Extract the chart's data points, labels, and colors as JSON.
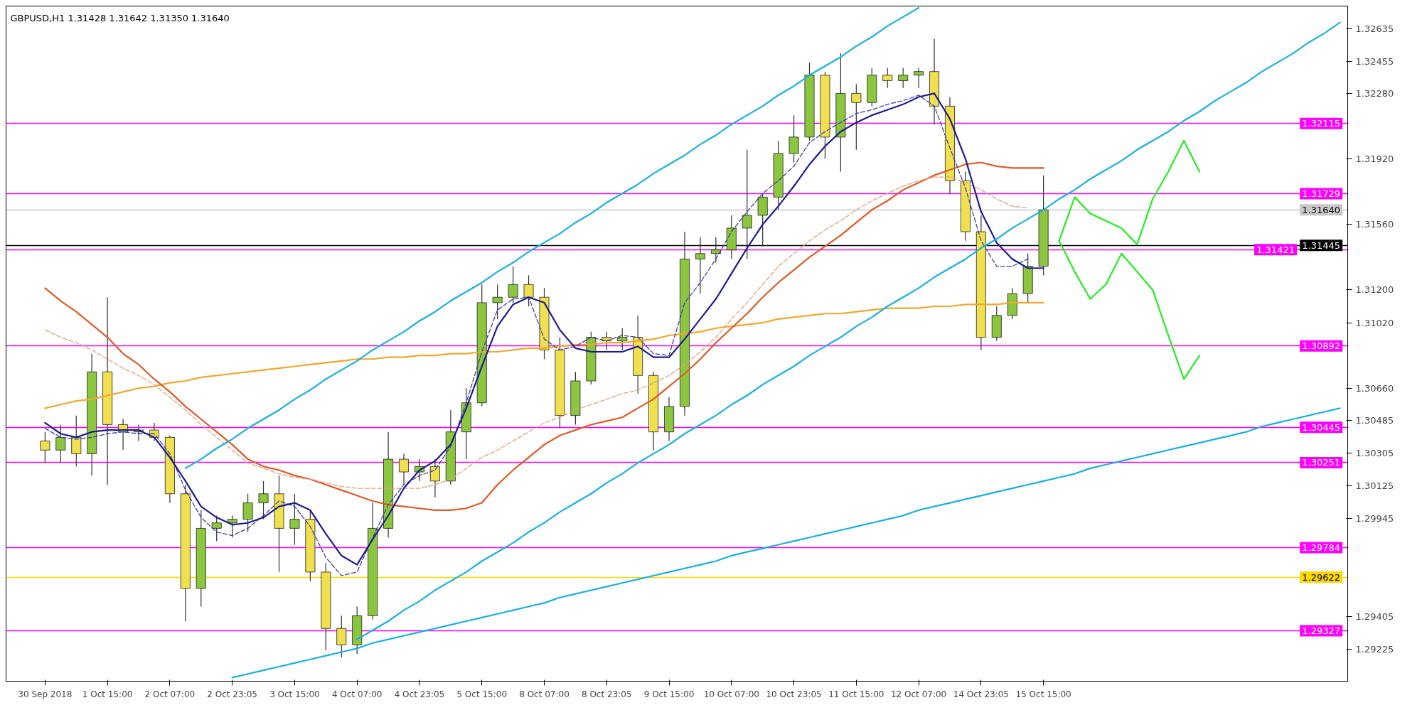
{
  "chart_data": {
    "type": "candlestick",
    "title": "GBPUSD,H1  1.31428 1.31642 1.31350 1.31640",
    "categories": [
      "30 Sep 2018",
      null,
      null,
      null,
      "1 Oct 15:00",
      null,
      null,
      null,
      "2 Oct 07:00",
      null,
      null,
      null,
      "2 Oct 23:05",
      null,
      null,
      null,
      "3 Oct 15:00",
      null,
      null,
      null,
      "4 Oct 07:00",
      null,
      null,
      null,
      "4 Oct 23:05",
      null,
      null,
      null,
      "5 Oct 15:00",
      null,
      null,
      null,
      "8 Oct 07:00",
      null,
      null,
      null,
      "8 Oct 23:05",
      null,
      null,
      null,
      "9 Oct 15:00",
      null,
      null,
      null,
      "10 Oct 07:00",
      null,
      null,
      null,
      "10 Oct 23:05",
      null,
      null,
      null,
      "11 Oct 15:00",
      null,
      null,
      null,
      "12 Oct 07:00",
      null,
      null,
      null,
      "14 Oct 23:05",
      null,
      null,
      null,
      "15 Oct 15:00",
      null,
      null,
      null,
      null,
      null,
      null,
      null,
      null,
      null,
      null,
      null,
      null,
      null,
      null,
      null,
      null,
      null,
      null,
      null
    ],
    "ohlc": [
      [
        1.3037,
        1.3042,
        1.3025,
        1.3032
      ],
      [
        1.3032,
        1.3046,
        1.3025,
        1.3039
      ],
      [
        1.3039,
        1.3051,
        1.3023,
        1.303
      ],
      [
        1.303,
        1.3085,
        1.3018,
        1.3075
      ],
      [
        1.3075,
        1.3116,
        1.3013,
        1.3046
      ],
      [
        1.3046,
        1.3049,
        1.3032,
        1.3042
      ],
      [
        1.3042,
        1.3046,
        1.3037,
        1.3043
      ],
      [
        1.3043,
        1.3047,
        1.3037,
        1.3039
      ],
      [
        1.3039,
        1.304,
        1.3003,
        1.3008
      ],
      [
        1.3008,
        1.3013,
        1.2938,
        1.2956
      ],
      [
        1.2956,
        1.2999,
        1.2946,
        1.2989
      ],
      [
        1.2989,
        1.2996,
        1.2982,
        1.2992
      ],
      [
        1.2992,
        1.2996,
        1.2984,
        1.2994
      ],
      [
        1.2994,
        1.3008,
        1.2987,
        1.3003
      ],
      [
        1.3003,
        1.3015,
        1.2994,
        1.3008
      ],
      [
        1.3008,
        1.3018,
        1.2965,
        1.2989
      ],
      [
        1.2989,
        1.3008,
        1.298,
        1.2994
      ],
      [
        1.2994,
        1.2999,
        1.296,
        1.2965
      ],
      [
        1.2965,
        1.297,
        1.2922,
        1.2934
      ],
      [
        1.2934,
        1.2941,
        1.2918,
        1.2925
      ],
      [
        1.2925,
        1.2946,
        1.292,
        1.2941
      ],
      [
        1.2941,
        1.3003,
        1.2939,
        1.2989
      ],
      [
        1.2989,
        1.3042,
        1.2984,
        1.3027
      ],
      [
        1.3027,
        1.303,
        1.3013,
        1.302
      ],
      [
        1.302,
        1.3027,
        1.3015,
        1.3023
      ],
      [
        1.3023,
        1.3027,
        1.3006,
        1.3015
      ],
      [
        1.3015,
        1.3054,
        1.3013,
        1.3042
      ],
      [
        1.3042,
        1.3066,
        1.3027,
        1.3058
      ],
      [
        1.3058,
        1.3123,
        1.3056,
        1.3113
      ],
      [
        1.3113,
        1.3123,
        1.3104,
        1.3116
      ],
      [
        1.3116,
        1.3133,
        1.3113,
        1.3123
      ],
      [
        1.3123,
        1.3128,
        1.3111,
        1.3116
      ],
      [
        1.3116,
        1.3121,
        1.3082,
        1.3087
      ],
      [
        1.3087,
        1.3094,
        1.3044,
        1.3051
      ],
      [
        1.3051,
        1.3075,
        1.3046,
        1.307
      ],
      [
        1.307,
        1.3097,
        1.3068,
        1.3094
      ],
      [
        1.3094,
        1.3097,
        1.3087,
        1.3092
      ],
      [
        1.3092,
        1.3099,
        1.3087,
        1.3094
      ],
      [
        1.3094,
        1.3106,
        1.3063,
        1.3073
      ],
      [
        1.3073,
        1.3075,
        1.3032,
        1.3042
      ],
      [
        1.3042,
        1.3061,
        1.3037,
        1.3056
      ],
      [
        1.3056,
        1.3152,
        1.3051,
        1.3137
      ],
      [
        1.3137,
        1.3149,
        1.3118,
        1.314
      ],
      [
        1.314,
        1.3149,
        1.3135,
        1.3142
      ],
      [
        1.3142,
        1.3161,
        1.3137,
        1.3154
      ],
      [
        1.3154,
        1.3197,
        1.3137,
        1.3161
      ],
      [
        1.3161,
        1.3173,
        1.3144,
        1.3171
      ],
      [
        1.3171,
        1.3202,
        1.3164,
        1.3195
      ],
      [
        1.3195,
        1.3216,
        1.319,
        1.3204
      ],
      [
        1.3204,
        1.3245,
        1.3202,
        1.3238
      ],
      [
        1.3238,
        1.324,
        1.3192,
        1.3204
      ],
      [
        1.3204,
        1.325,
        1.3185,
        1.3228
      ],
      [
        1.3228,
        1.3233,
        1.3197,
        1.3223
      ],
      [
        1.3223,
        1.3242,
        1.3221,
        1.3238
      ],
      [
        1.3238,
        1.3242,
        1.3231,
        1.3235
      ],
      [
        1.3235,
        1.3242,
        1.3231,
        1.3238
      ],
      [
        1.3238,
        1.3242,
        1.3231,
        1.324
      ],
      [
        1.324,
        1.3258,
        1.3211,
        1.3221
      ],
      [
        1.3221,
        1.3226,
        1.3173,
        1.318
      ],
      [
        1.318,
        1.3185,
        1.3147,
        1.3152
      ],
      [
        1.3152,
        1.3161,
        1.3087,
        1.3094
      ],
      [
        1.3094,
        1.3111,
        1.3092,
        1.3106
      ],
      [
        1.3106,
        1.3121,
        1.3104,
        1.3118
      ],
      [
        1.3118,
        1.314,
        1.3113,
        1.3133
      ],
      [
        1.3133,
        1.3183,
        1.3128,
        1.3164
      ],
      null,
      null,
      null,
      null,
      null,
      null,
      null,
      null,
      null,
      null,
      null,
      null,
      null,
      null,
      null,
      null,
      null,
      null,
      null
    ],
    "colors": [
      "#f0e050",
      "#8cc63f",
      "#f0e050",
      "#8cc63f",
      "#f0e050",
      "#f0e050",
      "#8cc63f",
      "#f0e050",
      "#f0e050",
      "#f0e050",
      "#8cc63f",
      "#8cc63f",
      "#8cc63f",
      "#8cc63f",
      "#8cc63f",
      "#f0e050",
      "#8cc63f",
      "#f0e050",
      "#f0e050",
      "#f0e050",
      "#8cc63f",
      "#8cc63f",
      "#8cc63f",
      "#f0e050",
      "#8cc63f",
      "#f0e050",
      "#8cc63f",
      "#8cc63f",
      "#8cc63f",
      "#8cc63f",
      "#8cc63f",
      "#f0e050",
      "#f0e050",
      "#f0e050",
      "#8cc63f",
      "#8cc63f",
      "#f0e050",
      "#8cc63f",
      "#f0e050",
      "#f0e050",
      "#8cc63f",
      "#8cc63f",
      "#8cc63f",
      "#8cc63f",
      "#8cc63f",
      "#8cc63f",
      "#8cc63f",
      "#8cc63f",
      "#8cc63f",
      "#8cc63f",
      "#f0e050",
      "#8cc63f",
      "#f0e050",
      "#8cc63f",
      "#f0e050",
      "#8cc63f",
      "#8cc63f",
      "#f0e050",
      "#f0e050",
      "#f0e050",
      "#f0e050",
      "#8cc63f",
      "#8cc63f",
      "#8cc63f",
      "#8cc63f",
      null,
      null,
      null,
      null,
      null,
      null,
      null,
      null,
      null,
      null,
      null,
      null,
      null,
      null,
      null,
      null,
      null,
      null,
      null
    ],
    "series": [
      {
        "type": "line",
        "color": "#f0a830",
        "line_style": "solid",
        "values": [
          1.3055,
          1.3057,
          1.3059,
          1.306,
          1.3062,
          1.3064,
          1.3066,
          1.3067,
          1.3069,
          1.307,
          1.3072,
          1.3073,
          1.3074,
          1.3075,
          1.3076,
          1.3077,
          1.3078,
          1.3079,
          1.308,
          1.3081,
          1.3082,
          1.3082,
          1.3083,
          1.3083,
          1.3084,
          1.3084,
          1.3085,
          1.3085,
          1.3086,
          1.3086,
          1.3087,
          1.3088,
          1.3088,
          1.3089,
          1.309,
          1.309,
          1.3091,
          1.3091,
          1.3092,
          1.3093,
          1.3095,
          1.3096,
          1.3097,
          1.3099,
          1.31,
          1.3101,
          1.3102,
          1.3104,
          1.3105,
          1.3106,
          1.3107,
          1.3107,
          1.3108,
          1.3109,
          1.311,
          1.311,
          1.311,
          1.3111,
          1.3111,
          1.3112,
          1.3112,
          1.3112,
          1.3113,
          1.3113,
          1.3113,
          null,
          null,
          null,
          null,
          null,
          null,
          null,
          null,
          null,
          null,
          null,
          null,
          null,
          null,
          null,
          null,
          null,
          null,
          null
        ]
      },
      {
        "type": "line",
        "color": "#e05a28",
        "line_style": "solid",
        "values": [
          1.3121,
          1.3114,
          1.3108,
          1.3101,
          1.3094,
          1.3085,
          1.3079,
          1.3071,
          1.3064,
          1.3056,
          1.3049,
          1.3042,
          1.3035,
          1.3027,
          1.3023,
          1.3021,
          1.3018,
          1.3016,
          1.3013,
          1.301,
          1.3007,
          1.3004,
          1.3002,
          1.3001,
          1.3,
          1.2999,
          1.2999,
          1.3,
          1.3003,
          1.3013,
          1.3021,
          1.3028,
          1.3035,
          1.304,
          1.3043,
          1.3046,
          1.3048,
          1.305,
          1.3055,
          1.306,
          1.3067,
          1.3074,
          1.3082,
          1.3091,
          1.3099,
          1.3107,
          1.3116,
          1.3124,
          1.3131,
          1.3138,
          1.3144,
          1.315,
          1.3157,
          1.3164,
          1.3169,
          1.3175,
          1.3179,
          1.3183,
          1.3186,
          1.3189,
          1.319,
          1.3188,
          1.3187,
          1.3187,
          1.3187,
          null,
          null,
          null,
          null,
          null,
          null,
          null,
          null,
          null,
          null,
          null,
          null,
          null,
          null,
          null,
          null,
          null,
          null,
          null
        ]
      },
      {
        "type": "line",
        "color": "#e0a080",
        "line_style": "dashed",
        "values": [
          1.3098,
          1.3094,
          1.3091,
          1.3087,
          1.3082,
          1.3077,
          1.3073,
          1.3068,
          1.3061,
          1.3054,
          1.3046,
          1.3039,
          1.3032,
          1.3025,
          1.3022,
          1.3019,
          1.3017,
          1.3016,
          1.3014,
          1.3012,
          1.3011,
          1.3011,
          1.3011,
          1.3011,
          1.3011,
          1.3013,
          1.3016,
          1.3022,
          1.3028,
          1.3032,
          1.3037,
          1.3042,
          1.3047,
          1.305,
          1.3054,
          1.3057,
          1.306,
          1.3063,
          1.3065,
          1.3069,
          1.3073,
          1.3079,
          1.3086,
          1.3094,
          1.3104,
          1.3113,
          1.3123,
          1.3133,
          1.314,
          1.3147,
          1.3153,
          1.3158,
          1.3164,
          1.3169,
          1.3173,
          1.3177,
          1.318,
          1.3182,
          1.3182,
          1.3179,
          1.3175,
          1.317,
          1.3166,
          1.3165,
          null,
          null,
          null,
          null,
          null,
          null,
          null,
          null,
          null,
          null,
          null,
          null,
          null,
          null,
          null,
          null,
          null,
          null,
          null,
          null
        ]
      },
      {
        "type": "line",
        "color": "#4040a0",
        "line_style": "dashed",
        "values": [
          1.3044,
          1.3039,
          1.3038,
          1.3039,
          1.3041,
          1.3042,
          1.3041,
          1.3041,
          1.303,
          1.301,
          1.2995,
          1.2987,
          1.2985,
          1.2989,
          1.2996,
          1.3004,
          1.3001,
          1.299,
          1.2973,
          1.2963,
          1.2965,
          1.2984,
          1.3002,
          1.3013,
          1.3018,
          1.3021,
          1.3034,
          1.3058,
          1.3086,
          1.3109,
          1.3115,
          1.3116,
          1.3093,
          1.3087,
          1.3089,
          1.3094,
          1.3092,
          1.3095,
          1.3094,
          1.3085,
          1.3084,
          1.3113,
          1.3124,
          1.3137,
          1.3152,
          1.3163,
          1.3173,
          1.318,
          1.3188,
          1.3201,
          1.3207,
          1.3212,
          1.3217,
          1.3219,
          1.3222,
          1.3224,
          1.3227,
          1.3221,
          1.3198,
          1.3176,
          1.3147,
          1.3133,
          1.3133,
          1.3137,
          null,
          null,
          null,
          null,
          null,
          null,
          null,
          null,
          null,
          null,
          null,
          null,
          null,
          null,
          null,
          null,
          null,
          null,
          null,
          null
        ]
      },
      {
        "type": "line",
        "color": "#1c1c8c",
        "line_style": "solid",
        "values": [
          1.3047,
          1.3041,
          1.3039,
          1.3042,
          1.3043,
          1.3043,
          1.3043,
          1.3039,
          1.3028,
          1.3015,
          1.3001,
          1.2995,
          1.2991,
          1.2992,
          1.2995,
          1.3001,
          1.3003,
          1.2999,
          1.2986,
          1.2974,
          1.2969,
          1.2983,
          1.2996,
          1.3011,
          1.3021,
          1.3026,
          1.3035,
          1.3055,
          1.3078,
          1.31,
          1.3112,
          1.3116,
          1.3113,
          1.3098,
          1.3088,
          1.3086,
          1.3086,
          1.3086,
          1.3089,
          1.3083,
          1.3083,
          1.3093,
          1.3104,
          1.3115,
          1.3129,
          1.3143,
          1.3156,
          1.3166,
          1.3177,
          1.3189,
          1.3199,
          1.3207,
          1.3212,
          1.3216,
          1.3219,
          1.3222,
          1.3226,
          1.3228,
          1.3214,
          1.3192,
          1.3163,
          1.3146,
          1.3137,
          1.3132,
          1.3132,
          null,
          null,
          null,
          null,
          null,
          null,
          null,
          null,
          null,
          null,
          null,
          null,
          null,
          null,
          null,
          null,
          null,
          null,
          null
        ]
      },
      {
        "type": "line",
        "color": "#1ab0e0",
        "line_style": "solid",
        "values": [
          null,
          null,
          null,
          null,
          null,
          null,
          null,
          null,
          null,
          1.3022,
          1.3027,
          1.3033,
          1.3038,
          1.3044,
          1.3049,
          1.3054,
          1.306,
          1.3065,
          1.3071,
          1.3076,
          1.3081,
          1.3087,
          1.3092,
          1.3097,
          1.3103,
          1.3108,
          1.3114,
          1.3119,
          1.3124,
          1.313,
          1.3135,
          1.3141,
          1.3146,
          1.3151,
          1.3157,
          1.3162,
          1.3168,
          1.3173,
          1.3178,
          1.3184,
          1.3189,
          1.3194,
          1.32,
          1.3205,
          1.3211,
          1.3216,
          1.3221,
          1.3227,
          1.3232,
          1.3238,
          1.3243,
          1.3248,
          1.3254,
          1.3259,
          1.3265,
          1.327,
          1.3275,
          null,
          null,
          null,
          null,
          null,
          null,
          null,
          null,
          null,
          null,
          null,
          null,
          null,
          null,
          null,
          null,
          null,
          null,
          null,
          null,
          null,
          null,
          null,
          null,
          null,
          null,
          null
        ]
      },
      {
        "type": "line",
        "color": "#1ab0e0",
        "line_style": "solid",
        "values": [
          null,
          null,
          null,
          null,
          null,
          null,
          null,
          null,
          null,
          null,
          null,
          null,
          null,
          null,
          null,
          null,
          null,
          null,
          null,
          null,
          1.2928,
          1.2933,
          1.2938,
          1.2944,
          1.2949,
          1.2955,
          1.296,
          1.2965,
          1.2971,
          1.2976,
          1.2981,
          1.2987,
          1.2992,
          1.2998,
          1.3003,
          1.3008,
          1.3014,
          1.3019,
          1.3025,
          1.303,
          1.3035,
          1.3041,
          1.3046,
          1.3051,
          1.3057,
          1.3062,
          1.3068,
          1.3073,
          1.3078,
          1.3084,
          1.3089,
          1.3094,
          1.31,
          1.3105,
          1.3111,
          1.3116,
          1.3121,
          1.3127,
          1.3132,
          1.3137,
          1.3143,
          1.3148,
          1.3154,
          1.3159,
          1.3164,
          1.317,
          1.3175,
          1.3181,
          1.3186,
          1.3191,
          1.3197,
          1.3202,
          1.3207,
          1.3213,
          1.3218,
          1.3224,
          1.3229,
          1.3234,
          1.324,
          1.3245,
          1.325,
          1.3256,
          1.3261,
          1.3267
        ]
      },
      {
        "type": "line",
        "color": "#1ab0e0",
        "line_style": "solid",
        "values": [
          null,
          null,
          null,
          null,
          null,
          null,
          null,
          null,
          null,
          null,
          null,
          null,
          1.2907,
          1.2909,
          1.2911,
          1.2913,
          1.2915,
          1.2917,
          1.2919,
          1.2921,
          1.2923,
          1.2926,
          1.2928,
          1.293,
          1.2932,
          1.2934,
          1.2936,
          1.2938,
          1.294,
          1.2942,
          1.2944,
          1.2946,
          1.2948,
          1.2951,
          1.2953,
          1.2955,
          1.2957,
          1.2959,
          1.2961,
          1.2963,
          1.2965,
          1.2967,
          1.2969,
          1.2971,
          1.2974,
          1.2976,
          1.2978,
          1.298,
          1.2982,
          1.2984,
          1.2986,
          1.2988,
          1.299,
          1.2992,
          1.2994,
          1.2996,
          1.2999,
          1.3001,
          1.3003,
          1.3005,
          1.3007,
          1.3009,
          1.3011,
          1.3013,
          1.3015,
          1.3017,
          1.3019,
          1.3022,
          1.3024,
          1.3026,
          1.3028,
          1.303,
          1.3032,
          1.3034,
          1.3036,
          1.3038,
          1.304,
          1.3042,
          1.3045,
          1.3047,
          1.3049,
          1.3051,
          1.3053,
          1.3055
        ]
      },
      {
        "type": "line",
        "color": "#22ee22",
        "line_style": "solid",
        "values": [
          null,
          null,
          null,
          null,
          null,
          null,
          null,
          null,
          null,
          null,
          null,
          null,
          null,
          null,
          null,
          null,
          null,
          null,
          null,
          null,
          null,
          null,
          null,
          null,
          null,
          null,
          null,
          null,
          null,
          null,
          null,
          null,
          null,
          null,
          null,
          null,
          null,
          null,
          null,
          null,
          null,
          null,
          null,
          null,
          null,
          null,
          null,
          null,
          null,
          null,
          null,
          null,
          null,
          null,
          null,
          null,
          null,
          null,
          null,
          null,
          null,
          null,
          null,
          null,
          null,
          1.3147,
          1.3171,
          1.3162,
          1.3158,
          1.3154,
          1.3145,
          1.317,
          1.3185,
          1.3202,
          1.3185,
          null,
          null,
          null,
          null,
          null,
          null,
          null,
          null,
          null
        ]
      },
      {
        "type": "line",
        "color": "#22ee22",
        "line_style": "solid",
        "values": [
          null,
          null,
          null,
          null,
          null,
          null,
          null,
          null,
          null,
          null,
          null,
          null,
          null,
          null,
          null,
          null,
          null,
          null,
          null,
          null,
          null,
          null,
          null,
          null,
          null,
          null,
          null,
          null,
          null,
          null,
          null,
          null,
          null,
          null,
          null,
          null,
          null,
          null,
          null,
          null,
          null,
          null,
          null,
          null,
          null,
          null,
          null,
          null,
          null,
          null,
          null,
          null,
          null,
          null,
          null,
          null,
          null,
          null,
          null,
          null,
          null,
          null,
          null,
          null,
          null,
          1.3147,
          1.313,
          1.3115,
          1.3123,
          1.314,
          1.313,
          1.312,
          1.3095,
          1.3071,
          1.3084,
          null,
          null,
          null,
          null,
          null,
          null,
          null,
          null,
          null
        ]
      }
    ],
    "ref_lines": [
      {
        "axis": "y",
        "value": 1.32115,
        "label": "1.32115",
        "color": "#ff00ff"
      },
      {
        "axis": "y",
        "value": 1.31729,
        "label": "1.31729",
        "color": "#ff00ff"
      },
      {
        "axis": "y",
        "value": 1.3164,
        "label": "1.31640",
        "color": "#c8c8c8"
      },
      {
        "axis": "y",
        "value": 1.31445,
        "label": "1.31445",
        "color": "#000000"
      },
      {
        "axis": "y",
        "value": 1.31421,
        "label": "1.31421",
        "color": "#ff00ff"
      },
      {
        "axis": "y",
        "value": 1.30892,
        "label": "1.30892",
        "color": "#ff00ff"
      },
      {
        "axis": "y",
        "value": 1.30445,
        "label": "1.30445",
        "color": "#ff00ff"
      },
      {
        "axis": "y",
        "value": 1.30251,
        "label": "1.30251",
        "color": "#ff00ff"
      },
      {
        "axis": "y",
        "value": 1.29784,
        "label": "1.29784",
        "color": "#ff00ff"
      },
      {
        "axis": "y",
        "value": 1.29622,
        "label": "1.29622",
        "color": "#ffd700"
      },
      {
        "axis": "y",
        "value": 1.29327,
        "label": "1.29327",
        "color": "#ff00ff"
      }
    ],
    "ylim": [
      1.2905,
      1.3276
    ],
    "yticks": [
      1.29225,
      1.29405,
      1.29945,
      1.30125,
      1.30305,
      1.30485,
      {
        "value": 1.3066,
        "label": "1.30660"
      },
      {
        "value": 1.3102,
        "label": "1.31020"
      },
      {
        "value": 1.312,
        "label": "1.31200"
      },
      {
        "value": 1.3156,
        "label": "1.31560"
      },
      {
        "value": 1.3192,
        "label": "1.31920"
      },
      {
        "value": 1.3228,
        "label": "1.32280"
      },
      1.32455,
      1.32635
    ],
    "grid": false
  }
}
